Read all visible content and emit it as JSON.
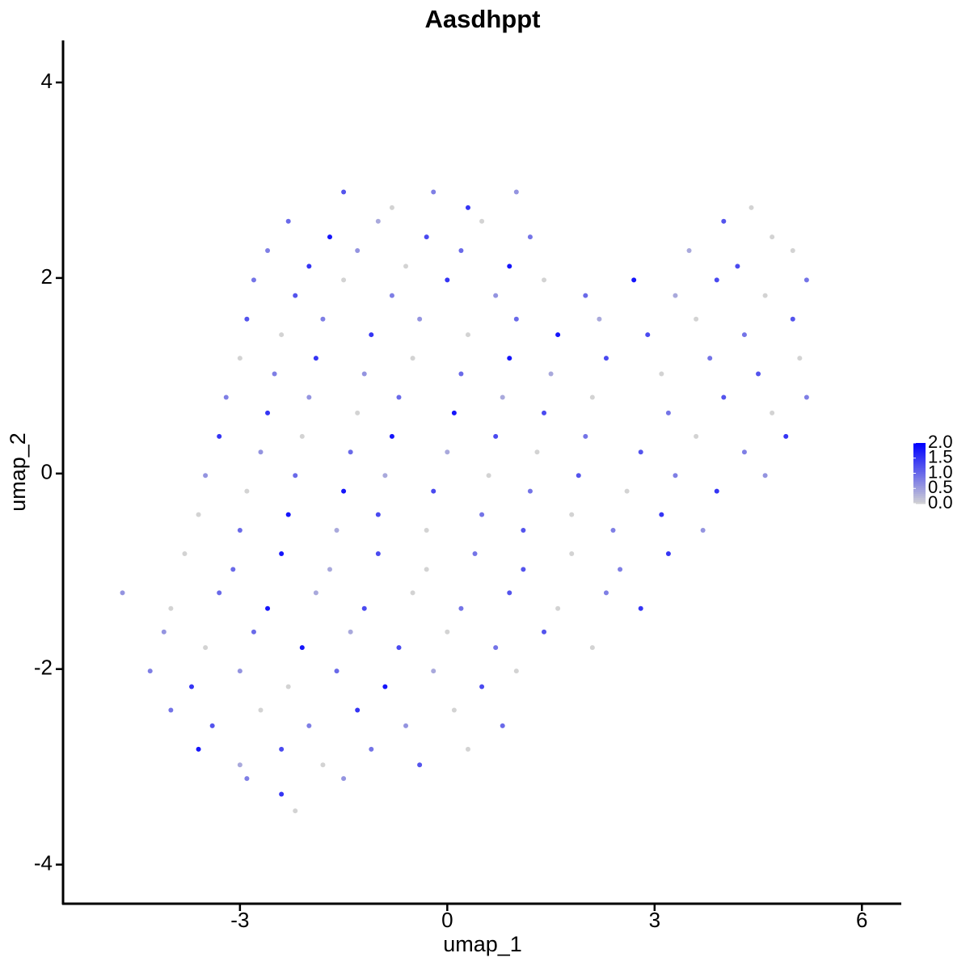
{
  "chart_data": {
    "type": "scatter",
    "title": "Aasdhppt",
    "x_label": "umap_1",
    "y_label": "umap_2",
    "xlim": [
      -5.56,
      6.57
    ],
    "ylim": [
      -4.4,
      4.43
    ],
    "xticks": [
      -3,
      0,
      3,
      6
    ],
    "yticks": [
      -4,
      -2,
      0,
      2,
      4
    ],
    "color_low": "#d3d3d3",
    "color_high": "#0000ff",
    "colorlim": [
      0,
      2
    ],
    "colorticks": [
      {
        "value": 0,
        "label": "0.0"
      },
      {
        "value": 0.5,
        "label": "0.5"
      },
      {
        "value": 1,
        "label": "1.0"
      },
      {
        "value": 1.5,
        "label": "1.5"
      },
      {
        "value": 2,
        "label": "2.0"
      }
    ],
    "x": [
      -1.5,
      -0.8,
      -0.2,
      0.3,
      1.0,
      4.4,
      -2.3,
      -1.7,
      -1.0,
      -0.3,
      0.5,
      1.2,
      4.0,
      4.7,
      -2.6,
      -2.0,
      -1.3,
      -0.6,
      0.2,
      0.9,
      3.5,
      4.2,
      5.0,
      -2.8,
      -2.2,
      -1.5,
      -0.8,
      0,
      0.7,
      1.4,
      2.0,
      2.7,
      3.3,
      3.9,
      4.6,
      5.2,
      -2.9,
      -2.4,
      -1.8,
      -1.1,
      -0.4,
      0.3,
      1.0,
      1.6,
      2.2,
      2.9,
      3.6,
      4.3,
      5.0,
      -3.0,
      -2.5,
      -1.9,
      -1.2,
      -0.5,
      0.2,
      0.9,
      1.5,
      2.3,
      3.1,
      3.8,
      4.5,
      5.1,
      -3.2,
      -2.6,
      -2.0,
      -1.3,
      -0.7,
      0.1,
      0.8,
      1.4,
      2.1,
      3.2,
      4.0,
      4.7,
      5.2,
      -3.3,
      -2.7,
      -2.1,
      -1.4,
      -0.8,
      0,
      0.7,
      1.3,
      2.0,
      2.8,
      3.6,
      4.3,
      4.9,
      -3.5,
      -2.9,
      -2.2,
      -1.5,
      -0.9,
      -0.2,
      0.6,
      1.2,
      1.9,
      2.6,
      3.3,
      3.9,
      4.6,
      -3.6,
      -3.0,
      -2.3,
      -1.6,
      -1.0,
      -0.3,
      0.5,
      1.1,
      1.8,
      2.4,
      3.1,
      3.7,
      -3.8,
      -3.1,
      -2.4,
      -1.7,
      -1.0,
      -0.3,
      0.4,
      1.1,
      1.8,
      2.5,
      3.2,
      -4.7,
      -4.0,
      -3.3,
      -2.6,
      -1.9,
      -1.2,
      -0.5,
      0.2,
      0.9,
      1.6,
      2.3,
      2.8,
      -4.1,
      -3.5,
      -2.8,
      -2.1,
      -1.4,
      -0.7,
      0,
      0.7,
      1.4,
      2.1,
      -4.3,
      -3.7,
      -3.0,
      -2.3,
      -1.6,
      -0.9,
      -0.2,
      0.5,
      1.0,
      -4.0,
      -3.4,
      -2.7,
      -2.0,
      -1.3,
      -0.6,
      0.1,
      0.8,
      -3.6,
      -3.0,
      -2.4,
      -1.8,
      -1.1,
      -0.4,
      0.3,
      -2.9,
      -2.4,
      -1.5,
      -2.2
    ],
    "y": [
      2.88,
      2.72,
      2.88,
      2.72,
      2.88,
      2.72,
      2.58,
      2.42,
      2.58,
      2.42,
      2.58,
      2.42,
      2.58,
      2.42,
      2.28,
      2.12,
      2.28,
      2.12,
      2.28,
      2.12,
      2.28,
      2.12,
      2.28,
      1.98,
      1.82,
      1.98,
      1.82,
      1.98,
      1.82,
      1.98,
      1.82,
      1.98,
      1.82,
      1.98,
      1.82,
      1.98,
      1.58,
      1.42,
      1.58,
      1.42,
      1.58,
      1.42,
      1.58,
      1.42,
      1.58,
      1.42,
      1.58,
      1.42,
      1.58,
      1.18,
      1.02,
      1.18,
      1.02,
      1.18,
      1.02,
      1.18,
      1.02,
      1.18,
      1.02,
      1.18,
      1.02,
      1.18,
      0.78,
      0.62,
      0.78,
      0.62,
      0.78,
      0.62,
      0.78,
      0.62,
      0.78,
      0.62,
      0.78,
      0.62,
      0.78,
      0.38,
      0.22,
      0.38,
      0.22,
      0.38,
      0.22,
      0.38,
      0.22,
      0.38,
      0.22,
      0.38,
      0.22,
      0.38,
      -0.02,
      -0.18,
      -0.02,
      -0.18,
      -0.02,
      -0.18,
      -0.02,
      -0.18,
      -0.02,
      -0.18,
      -0.02,
      -0.18,
      -0.02,
      -0.42,
      -0.58,
      -0.42,
      -0.58,
      -0.42,
      -0.58,
      -0.42,
      -0.58,
      -0.42,
      -0.58,
      -0.42,
      -0.58,
      -0.82,
      -0.98,
      -0.82,
      -0.98,
      -0.82,
      -0.98,
      -0.82,
      -0.98,
      -0.82,
      -0.98,
      -0.82,
      -1.22,
      -1.38,
      -1.22,
      -1.38,
      -1.22,
      -1.38,
      -1.22,
      -1.38,
      -1.22,
      -1.38,
      -1.22,
      -1.38,
      -1.62,
      -1.78,
      -1.62,
      -1.78,
      -1.62,
      -1.78,
      -1.62,
      -1.78,
      -1.62,
      -1.78,
      -2.02,
      -2.18,
      -2.02,
      -2.18,
      -2.02,
      -2.18,
      -2.02,
      -2.18,
      -2.02,
      -2.42,
      -2.58,
      -2.42,
      -2.58,
      -2.42,
      -2.58,
      -2.42,
      -2.58,
      -2.82,
      -2.98,
      -2.82,
      -2.98,
      -2.82,
      -2.98,
      -2.82,
      -3.12,
      -3.28,
      -3.12,
      -3.45
    ],
    "values": [
      1.2,
      0,
      0.8,
      1.5,
      0.6,
      0,
      1.0,
      1.8,
      0.4,
      1.3,
      0,
      0.9,
      1.2,
      0,
      0.8,
      1.5,
      0.6,
      0,
      1.0,
      1.8,
      0.4,
      1.3,
      0,
      0.9,
      1.2,
      0,
      0.8,
      1.5,
      0.6,
      0,
      1.0,
      1.8,
      0.4,
      1.3,
      0,
      0.9,
      1.2,
      0,
      0.8,
      1.5,
      0.6,
      0,
      1.0,
      1.8,
      0.4,
      1.3,
      0,
      0.9,
      1.2,
      0,
      0.8,
      1.5,
      0.6,
      0,
      1.0,
      1.8,
      0.4,
      1.3,
      0,
      0.9,
      1.2,
      0,
      0.8,
      1.5,
      0.6,
      0,
      1.0,
      1.8,
      0.4,
      1.3,
      0,
      0.9,
      1.2,
      0,
      0.8,
      1.5,
      0.6,
      0,
      1.0,
      1.8,
      0.4,
      1.3,
      0,
      0.9,
      1.2,
      0,
      0.8,
      1.5,
      0.6,
      0,
      1.0,
      1.8,
      0.4,
      1.3,
      0,
      0.9,
      1.2,
      0,
      0.8,
      1.5,
      0.6,
      0,
      1.0,
      1.8,
      0.4,
      1.3,
      0,
      0.9,
      1.2,
      0,
      0.8,
      1.5,
      0.6,
      0,
      1.0,
      1.8,
      0.4,
      1.3,
      0,
      0.9,
      1.2,
      0,
      0.8,
      1.5,
      0.6,
      0,
      1.0,
      1.8,
      0.4,
      1.3,
      0,
      0.9,
      1.2,
      0,
      0.8,
      1.5,
      0.6,
      0,
      1.0,
      1.8,
      0.4,
      1.3,
      0,
      0.9,
      1.2,
      0,
      0.8,
      1.5,
      0.6,
      0,
      1.0,
      1.8,
      0.4,
      1.3,
      0,
      0.9,
      1.2,
      0,
      0.8,
      1.5,
      0.6,
      0,
      1.0,
      1.8,
      0.4,
      1.3,
      0,
      0.9,
      1.2,
      0,
      0.8,
      1.5,
      0.6,
      0
    ]
  }
}
